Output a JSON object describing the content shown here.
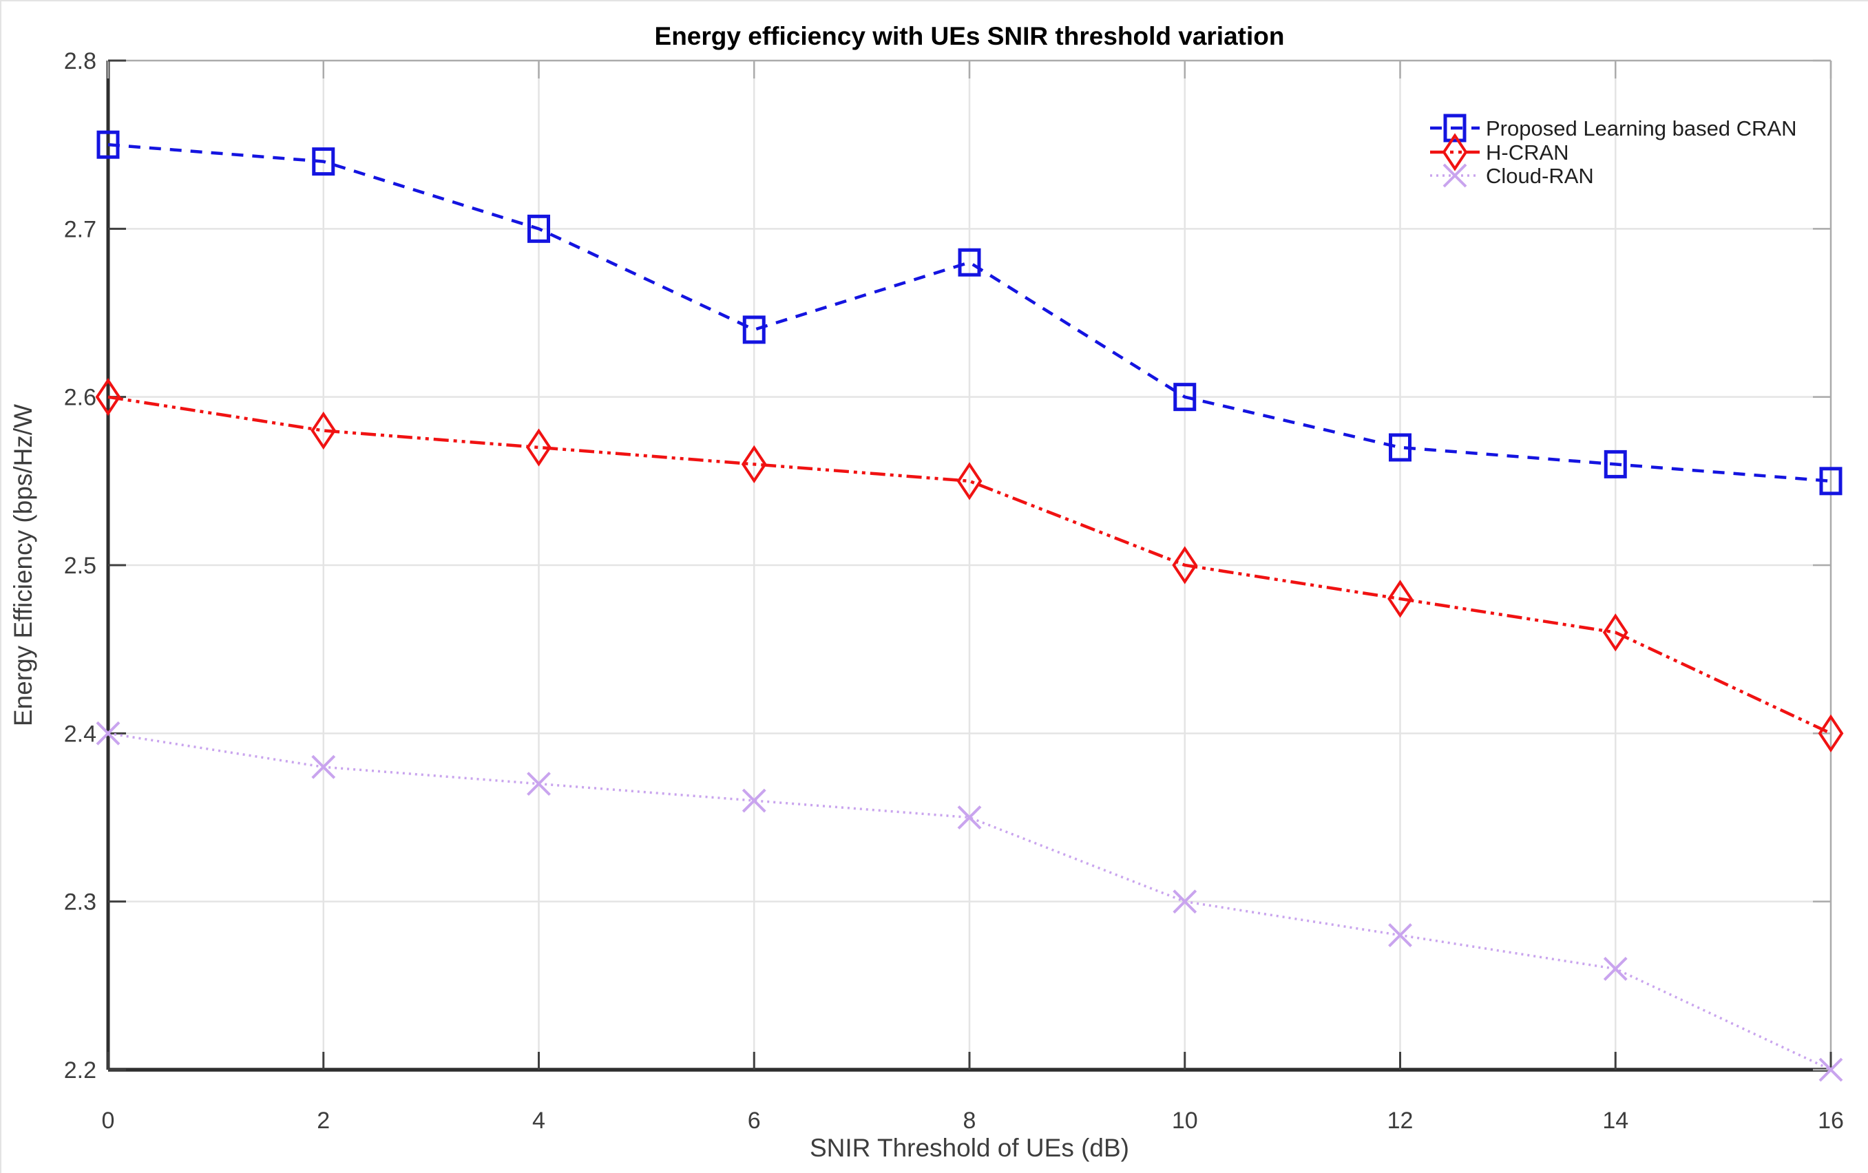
{
  "figure": {
    "title": "Energy efficiency with UEs SNIR threshold variation"
  },
  "chart_data": {
    "type": "line",
    "title": "Energy efficiency with UEs SNIR threshold variation",
    "xlabel": "SNIR Threshold  of UEs (dB)",
    "ylabel": "Energy Efficiency (bps/Hz/W",
    "x": [
      0,
      2,
      4,
      6,
      8,
      10,
      12,
      14,
      16
    ],
    "series": [
      {
        "name": "Proposed Learning based CRAN",
        "color": "#1414e0",
        "line_style": "dashed",
        "marker": "square",
        "values": [
          2.75,
          2.74,
          2.7,
          2.64,
          2.68,
          2.6,
          2.57,
          2.56,
          2.55
        ]
      },
      {
        "name": "H-CRAN",
        "color": "#f01212",
        "line_style": "dashdot",
        "marker": "diamond",
        "values": [
          2.6,
          2.58,
          2.57,
          2.56,
          2.55,
          2.5,
          2.48,
          2.46,
          2.4
        ]
      },
      {
        "name": "Cloud-RAN",
        "color": "#c9a4ee",
        "line_style": "dotted",
        "marker": "x",
        "values": [
          2.4,
          2.38,
          2.37,
          2.36,
          2.35,
          2.3,
          2.28,
          2.26,
          2.2
        ]
      }
    ],
    "xlim": [
      0,
      16
    ],
    "ylim": [
      2.2,
      2.8
    ],
    "xticks": [
      0,
      2,
      4,
      6,
      8,
      10,
      12,
      14,
      16
    ],
    "xtick_labels": [
      "0",
      "2",
      "4",
      "6",
      "8",
      "10",
      "12",
      "14",
      "16"
    ],
    "yticks": [
      2.2,
      2.3,
      2.4,
      2.5,
      2.6,
      2.7,
      2.8
    ],
    "ytick_labels": [
      "2.2",
      "2.3",
      "2.4",
      "2.5",
      "2.6",
      "2.7",
      "2.8"
    ],
    "grid": true,
    "legend_position": "northeast",
    "colors": {
      "grid_line": "#e4e4e4",
      "axis_dark": "#2e2e2e",
      "axis_light": "#ababab",
      "tick_mark": "#3f3f3f"
    }
  }
}
